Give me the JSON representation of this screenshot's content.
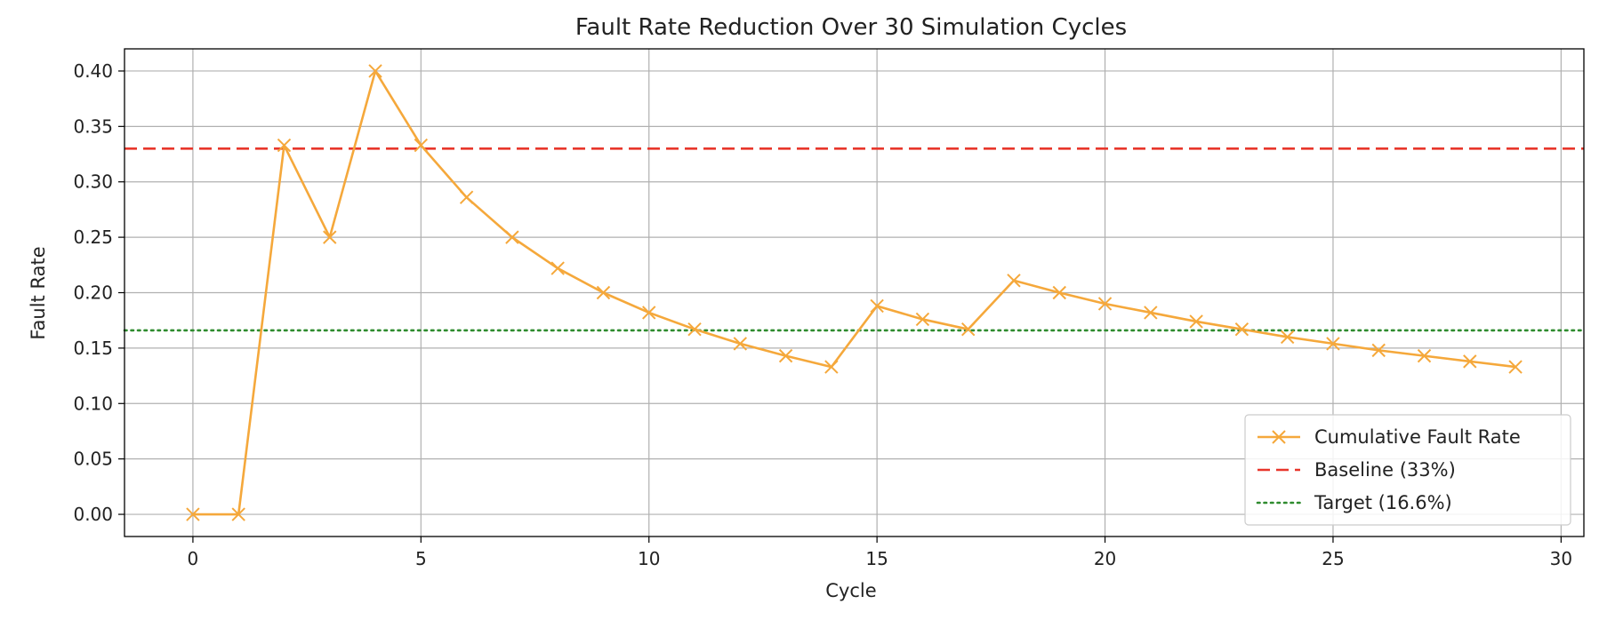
{
  "chart_data": {
    "type": "line",
    "title": "Fault Rate Reduction Over 30 Simulation Cycles",
    "xlabel": "Cycle",
    "ylabel": "Fault Rate",
    "xlim": [
      -1.5,
      30.5
    ],
    "ylim": [
      -0.02,
      0.42
    ],
    "xticks": [
      0,
      5,
      10,
      15,
      20,
      25,
      30
    ],
    "xtick_labels": [
      "0",
      "5",
      "10",
      "15",
      "20",
      "25",
      "30"
    ],
    "yticks": [
      0.0,
      0.05,
      0.1,
      0.15,
      0.2,
      0.25,
      0.3,
      0.35,
      0.4
    ],
    "ytick_labels": [
      "0.00",
      "0.05",
      "0.10",
      "0.15",
      "0.20",
      "0.25",
      "0.30",
      "0.35",
      "0.40"
    ],
    "grid": true,
    "legend_position": "lower-right",
    "series": [
      {
        "name": "Cumulative Fault Rate",
        "color": "#f5a83b",
        "marker": "x",
        "line_style": "solid",
        "x": [
          0,
          1,
          2,
          3,
          4,
          5,
          6,
          7,
          8,
          9,
          10,
          11,
          12,
          13,
          14,
          15,
          16,
          17,
          18,
          19,
          20,
          21,
          22,
          23,
          24,
          25,
          26,
          27,
          28,
          29
        ],
        "y": [
          0.0,
          0.0,
          0.333,
          0.25,
          0.4,
          0.333,
          0.286,
          0.25,
          0.222,
          0.2,
          0.182,
          0.167,
          0.154,
          0.143,
          0.133,
          0.188,
          0.176,
          0.167,
          0.211,
          0.2,
          0.19,
          0.182,
          0.174,
          0.167,
          0.16,
          0.154,
          0.148,
          0.143,
          0.138,
          0.133
        ]
      }
    ],
    "reference_lines": [
      {
        "name": "Baseline (33%)",
        "y": 0.33,
        "color": "#e8362b",
        "line_style": "dashed"
      },
      {
        "name": "Target (16.6%)",
        "y": 0.166,
        "color": "#2e8b2e",
        "line_style": "dotted"
      }
    ]
  }
}
